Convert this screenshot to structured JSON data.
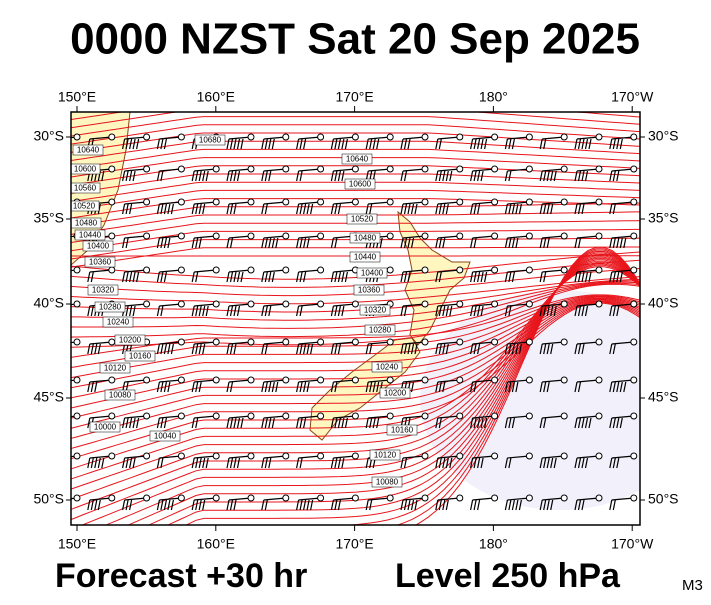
{
  "header": {
    "title": "0000 NZST Sat 20 Sep 2025"
  },
  "footer": {
    "forecast": "Forecast +30 hr",
    "level": "Level 250 hPa",
    "model": "M3"
  },
  "map": {
    "lon_labels": [
      "150°E",
      "160°E",
      "170°E",
      "180°",
      "170°W"
    ],
    "lat_labels": [
      "30°S",
      "35°S",
      "40°S",
      "45°S",
      "50°S"
    ],
    "contour_labels": [
      "10680",
      "10640",
      "10600",
      "10560",
      "10520",
      "10480",
      "10440",
      "10400",
      "10360",
      "10320",
      "10280",
      "10240",
      "10200",
      "10160",
      "10120",
      "10080",
      "10000",
      "10040",
      "10640",
      "10600",
      "10520",
      "10480",
      "10440",
      "10400",
      "10360",
      "10320",
      "10280",
      "10240",
      "10200",
      "10160",
      "10120",
      "10080"
    ]
  }
}
